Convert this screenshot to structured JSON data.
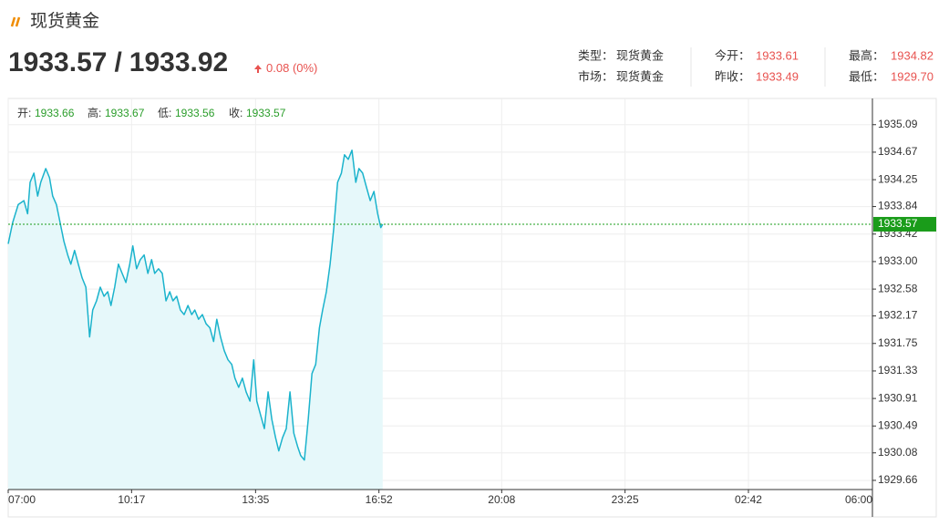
{
  "header": {
    "title": "现货黄金",
    "bid": "1933.57",
    "separator": "/",
    "ask": "1933.92",
    "change": "0.08",
    "change_pct": "(0%)",
    "info": [
      {
        "label": "类型：",
        "value": "现货黄金"
      },
      {
        "label": "今开：",
        "value": "1933.61"
      },
      {
        "label": "最高：",
        "value": "1934.82"
      },
      {
        "label": "市场：",
        "value": "现货黄金"
      },
      {
        "label": "昨收：",
        "value": "1933.49"
      },
      {
        "label": "最低：",
        "value": "1929.70"
      }
    ],
    "ohlc": [
      {
        "label": "开:",
        "value": "1933.66"
      },
      {
        "label": "高:",
        "value": "1933.67"
      },
      {
        "label": "低:",
        "value": "1933.56"
      },
      {
        "label": "收:",
        "value": "1933.57"
      }
    ]
  },
  "chart_data": {
    "type": "line",
    "x": [
      0,
      7,
      16,
      25,
      31,
      35,
      41,
      47,
      52,
      60,
      66,
      71,
      77,
      83,
      89,
      95,
      100,
      106,
      112,
      118,
      124,
      130,
      135,
      141,
      147,
      153,
      159,
      164,
      170,
      176,
      182,
      188,
      194,
      199,
      205,
      211,
      217,
      223,
      229,
      234,
      240,
      246,
      252,
      258,
      263,
      269,
      275,
      281,
      287,
      293,
      298,
      304,
      310,
      316,
      322,
      328,
      333,
      339,
      345,
      351,
      357,
      362,
      368,
      374,
      380,
      386,
      392,
      397,
      403,
      409,
      415,
      421,
      427,
      432,
      438,
      444,
      450,
      456,
      462,
      467,
      473,
      479,
      485,
      491,
      497,
      502,
      508,
      514,
      520,
      526,
      532,
      537,
      543,
      549,
      555,
      560,
      566,
      572,
      578,
      584,
      590,
      595,
      598
    ],
    "series": [
      {
        "color": "#1bb3cc",
        "area_color": "#e6f8fa",
        "values": [
          1933.27,
          1933.59,
          1933.87,
          1933.93,
          1933.73,
          1934.21,
          1934.35,
          1934.0,
          1934.21,
          1934.42,
          1934.28,
          1934.0,
          1933.87,
          1933.59,
          1933.31,
          1933.1,
          1932.96,
          1933.17,
          1932.96,
          1932.75,
          1932.61,
          1931.85,
          1932.26,
          1932.4,
          1932.61,
          1932.47,
          1932.54,
          1932.33,
          1932.61,
          1932.96,
          1932.82,
          1932.68,
          1932.96,
          1933.24,
          1932.89,
          1933.03,
          1933.1,
          1932.82,
          1933.03,
          1932.82,
          1932.89,
          1932.82,
          1932.4,
          1932.54,
          1932.4,
          1932.47,
          1932.26,
          1932.19,
          1932.33,
          1932.19,
          1932.26,
          1932.12,
          1932.19,
          1932.05,
          1931.99,
          1931.78,
          1932.12,
          1931.85,
          1931.64,
          1931.5,
          1931.43,
          1931.22,
          1931.08,
          1931.22,
          1931.01,
          1930.87,
          1931.5,
          1930.87,
          1930.66,
          1930.45,
          1931.01,
          1930.59,
          1930.31,
          1930.11,
          1930.31,
          1930.45,
          1931.01,
          1930.38,
          1930.18,
          1930.04,
          1929.97,
          1930.59,
          1931.29,
          1931.43,
          1931.99,
          1932.26,
          1932.54,
          1932.96,
          1933.52,
          1934.21,
          1934.35,
          1934.63,
          1934.56,
          1934.7,
          1934.21,
          1934.42,
          1934.35,
          1934.14,
          1933.93,
          1934.07,
          1933.73,
          1933.52,
          1933.57
        ]
      }
    ],
    "xlim": [
      0,
      1380
    ],
    "xticks": [
      {
        "value": 0,
        "label": "07:00"
      },
      {
        "value": 197,
        "label": "10:17"
      },
      {
        "value": 395,
        "label": "13:35"
      },
      {
        "value": 592,
        "label": "16:52"
      },
      {
        "value": 788,
        "label": "20:08"
      },
      {
        "value": 985,
        "label": "23:25"
      },
      {
        "value": 1182,
        "label": "02:42"
      },
      {
        "value": 1380,
        "label": "06:00"
      }
    ],
    "ylim": [
      1929.52,
      1935.49
    ],
    "yticks": [
      1929.66,
      1930.08,
      1930.49,
      1930.91,
      1931.33,
      1931.75,
      1932.17,
      1932.58,
      {
        "value": 1933,
        "label": "1933.00"
      },
      1933.42,
      1933.84,
      1934.25,
      1934.67,
      1935.09
    ],
    "grid": true,
    "last_value": 1933.57,
    "last_color": "#1a9c1a"
  }
}
